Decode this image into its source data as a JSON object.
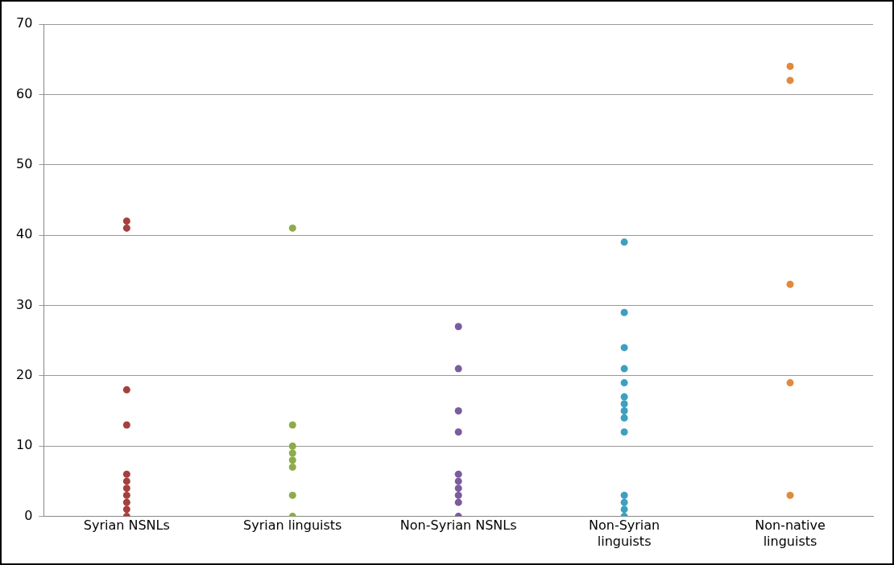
{
  "chart_data": {
    "type": "scatter",
    "categories": [
      "Syrian NSNLs",
      "Syrian linguists",
      "Non-Syrian NSNLs",
      "Non-Syrian linguists",
      "Non-native linguists"
    ],
    "series": [
      {
        "color": "#a5403d",
        "x": [
          "Syrian NSNLs",
          "Syrian NSNLs",
          "Syrian NSNLs",
          "Syrian NSNLs",
          "Syrian NSNLs",
          "Syrian NSNLs",
          "Syrian NSNLs",
          "Syrian NSNLs",
          "Syrian NSNLs",
          "Syrian NSNLs",
          "Syrian NSNLs"
        ],
        "values": [
          42,
          41,
          18,
          13,
          6,
          5,
          4,
          3,
          2,
          1,
          0
        ]
      },
      {
        "color": "#8eab4a",
        "x": [
          "Syrian linguists",
          "Syrian linguists",
          "Syrian linguists",
          "Syrian linguists",
          "Syrian linguists",
          "Syrian linguists",
          "Syrian linguists",
          "Syrian linguists"
        ],
        "values": [
          41,
          13,
          10,
          9,
          8,
          7,
          3,
          0
        ]
      },
      {
        "color": "#7b5c9f",
        "x": [
          "Non-Syrian NSNLs",
          "Non-Syrian NSNLs",
          "Non-Syrian NSNLs",
          "Non-Syrian NSNLs",
          "Non-Syrian NSNLs",
          "Non-Syrian NSNLs",
          "Non-Syrian NSNLs",
          "Non-Syrian NSNLs",
          "Non-Syrian NSNLs",
          "Non-Syrian NSNLs"
        ],
        "values": [
          27,
          21,
          15,
          12,
          6,
          5,
          4,
          3,
          2,
          0
        ]
      },
      {
        "color": "#3f9fbf",
        "x": [
          "Non-Syrian linguists",
          "Non-Syrian linguists",
          "Non-Syrian linguists",
          "Non-Syrian linguists",
          "Non-Syrian linguists",
          "Non-Syrian linguists",
          "Non-Syrian linguists",
          "Non-Syrian linguists",
          "Non-Syrian linguists",
          "Non-Syrian linguists",
          "Non-Syrian linguists",
          "Non-Syrian linguists",
          "Non-Syrian linguists",
          "Non-Syrian linguists"
        ],
        "values": [
          39,
          29,
          24,
          21,
          19,
          17,
          16,
          15,
          14,
          12,
          3,
          2,
          1,
          0
        ]
      },
      {
        "color": "#e08a3c",
        "x": [
          "Non-native linguists",
          "Non-native linguists",
          "Non-native linguists",
          "Non-native linguists",
          "Non-native linguists"
        ],
        "values": [
          64,
          62,
          33,
          19,
          3
        ]
      }
    ],
    "ylim": [
      0,
      70
    ],
    "yticks": [
      0,
      10,
      20,
      30,
      40,
      50,
      60,
      70
    ],
    "grid": "y",
    "legend": false,
    "marker": "circle"
  }
}
